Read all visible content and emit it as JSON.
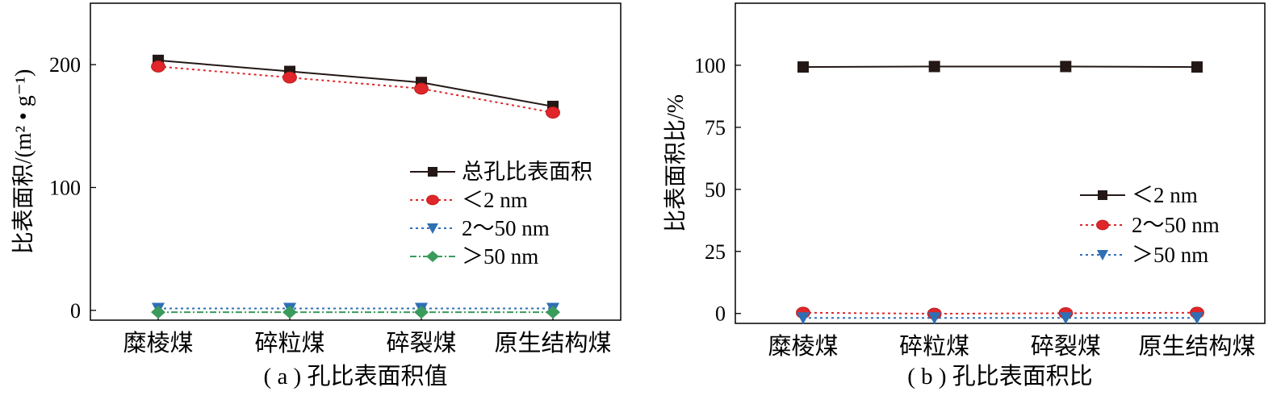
{
  "chart_data": [
    {
      "type": "line",
      "caption": "( a ) 孔比表面积值",
      "ylabel": "比表面积/(m² • g⁻¹)",
      "xlabel": "",
      "categories": [
        "糜棱煤",
        "碎粒煤",
        "碎裂煤",
        "原生结构煤"
      ],
      "ylim": [
        -8,
        250
      ],
      "yticks": [
        0,
        100,
        200
      ],
      "legend_position": "right-middle",
      "series": [
        {
          "name": "总孔比表面积",
          "values": [
            203.5,
            194.5,
            185.5,
            166
          ],
          "color": "#231815",
          "marker": "square",
          "dash": "solid"
        },
        {
          "name": "＜2 nm",
          "values": [
            198.5,
            189.5,
            180.5,
            161
          ],
          "color": "#e0262a",
          "marker": "circle",
          "dash": "dotted"
        },
        {
          "name": "2～50 nm",
          "values": [
            1.5,
            1.5,
            1.5,
            1.5
          ],
          "color": "#2f6fb4",
          "marker": "triangle-down",
          "dash": "dotted"
        },
        {
          "name": "＞50 nm",
          "values": [
            -1.5,
            -1.5,
            -1.5,
            -1.5
          ],
          "color": "#3a9b5c",
          "marker": "diamond",
          "dash": "dashdot"
        }
      ]
    },
    {
      "type": "line",
      "caption": "( b ) 孔比表面积比",
      "ylabel": "比表面积比/%",
      "xlabel": "",
      "categories": [
        "糜棱煤",
        "碎粒煤",
        "碎裂煤",
        "原生结构煤"
      ],
      "ylim": [
        -4,
        125
      ],
      "yticks": [
        0,
        25,
        50,
        75,
        100
      ],
      "legend_position": "right-middle",
      "series": [
        {
          "name": "＜2 nm",
          "values": [
            99.3,
            99.5,
            99.5,
            99.3
          ],
          "color": "#231815",
          "marker": "square",
          "dash": "solid"
        },
        {
          "name": "2～50 nm",
          "values": [
            0.3,
            -0.1,
            0.1,
            0.3
          ],
          "color": "#e0262a",
          "marker": "circle",
          "dash": "dotted"
        },
        {
          "name": "＞50 nm",
          "values": [
            -1.8,
            -1.8,
            -1.8,
            -1.8
          ],
          "color": "#2f6fb4",
          "marker": "triangle-down",
          "dash": "dotted"
        }
      ]
    }
  ]
}
